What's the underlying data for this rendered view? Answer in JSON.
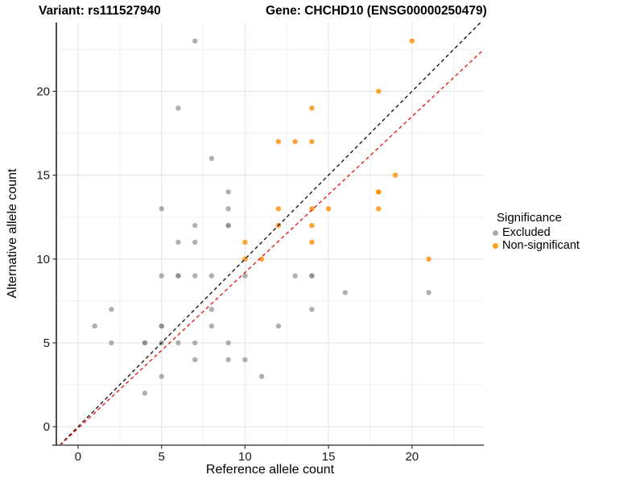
{
  "chart_data": {
    "type": "scatter",
    "title_left": "Variant: rs111527940",
    "title_right": "Gene: CHCHD10 (ENSG00000250479)",
    "xlabel": "Reference allele count",
    "ylabel": "Alternative allele count",
    "xlim": [
      -1.3,
      24.3
    ],
    "ylim": [
      -1.1,
      24.1
    ],
    "x_ticks": [
      0,
      5,
      10,
      15,
      20
    ],
    "y_ticks": [
      0,
      5,
      10,
      15,
      20
    ],
    "x_minor_ticks": [
      2.5,
      7.5,
      12.5,
      17.5,
      22.5
    ],
    "y_minor_ticks": [
      2.5,
      7.5,
      12.5,
      17.5,
      22.5
    ],
    "grid": true,
    "legend_position": "right",
    "series": [
      {
        "name": "Excluded",
        "color": "#808080",
        "opacity": 0.62,
        "points": [
          [
            7,
            23
          ],
          [
            6,
            19
          ],
          [
            8,
            16
          ],
          [
            9,
            14
          ],
          [
            5,
            13
          ],
          [
            9,
            13
          ],
          [
            7,
            12
          ],
          [
            9,
            12
          ],
          [
            9,
            12
          ],
          [
            6,
            11
          ],
          [
            7,
            11
          ],
          [
            5,
            9
          ],
          [
            6,
            9
          ],
          [
            6,
            9
          ],
          [
            7,
            9
          ],
          [
            8,
            9
          ],
          [
            10,
            9
          ],
          [
            13,
            9
          ],
          [
            14,
            9
          ],
          [
            14,
            9
          ],
          [
            2,
            7
          ],
          [
            8,
            7
          ],
          [
            14,
            7
          ],
          [
            16,
            8
          ],
          [
            21,
            8
          ],
          [
            1,
            6
          ],
          [
            5,
            6
          ],
          [
            5,
            6
          ],
          [
            8,
            6
          ],
          [
            12,
            6
          ],
          [
            2,
            5
          ],
          [
            4,
            5
          ],
          [
            4,
            5
          ],
          [
            5,
            5
          ],
          [
            6,
            5
          ],
          [
            7,
            5
          ],
          [
            9,
            5
          ],
          [
            7,
            4
          ],
          [
            9,
            4
          ],
          [
            10,
            4
          ],
          [
            5,
            3
          ],
          [
            11,
            3
          ],
          [
            4,
            2
          ]
        ]
      },
      {
        "name": "Non-significant",
        "color": "#FF8C00",
        "opacity": 0.78,
        "points": [
          [
            20,
            23
          ],
          [
            18,
            20
          ],
          [
            14,
            19
          ],
          [
            12,
            17
          ],
          [
            13,
            17
          ],
          [
            14,
            17
          ],
          [
            19,
            15
          ],
          [
            18,
            14
          ],
          [
            18,
            14
          ],
          [
            12,
            13
          ],
          [
            14,
            13
          ],
          [
            15,
            13
          ],
          [
            18,
            13
          ],
          [
            12,
            12
          ],
          [
            14,
            12
          ],
          [
            10,
            11
          ],
          [
            14,
            11
          ],
          [
            10,
            10
          ],
          [
            11,
            10
          ],
          [
            21,
            10
          ]
        ]
      }
    ],
    "lines": [
      {
        "name": "identity",
        "slope": 1,
        "intercept": 0,
        "color": "#1a1a1a",
        "style": "dashed"
      },
      {
        "name": "fit",
        "slope": 0.93,
        "intercept": -0.1,
        "color": "#e62020",
        "style": "dashed"
      }
    ]
  },
  "legend": {
    "title": "Significance",
    "items": [
      {
        "label": "Excluded",
        "color": "#ABABAB"
      },
      {
        "label": "Non-significant",
        "color": "#F9A21B"
      }
    ]
  },
  "colors": {
    "background": "#FFFFFF",
    "major_grid": "#E3E3E3",
    "minor_grid": "#F0F0F0",
    "axis_line_left": "#222222",
    "axis_line_bottom": "#777777",
    "tick": "#333333",
    "tick_label": "#1a1a1a"
  }
}
